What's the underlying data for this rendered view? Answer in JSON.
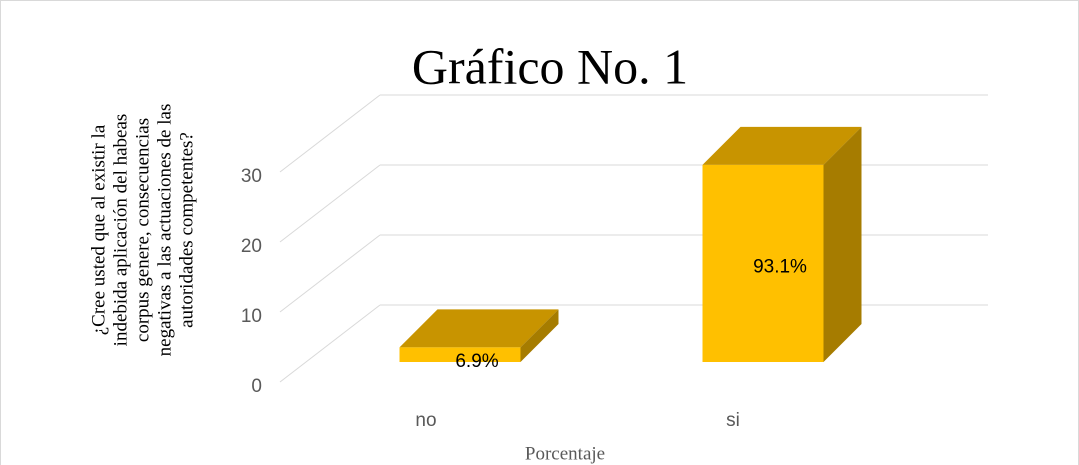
{
  "chart_data": {
    "type": "bar3d",
    "title": "Gráfico No. 1",
    "ylabel": "¿Cree usted que al existir la indebida aplicación del habeas corpus genere, consecuencias negativas a las actuaciones de las autoridades competentes?",
    "ylabel_lines": [
      "¿Cree usted que al existir la",
      "indebida aplicación del habeas",
      "corpus genere, consecuencias",
      "negativas a las actuaciones de las",
      "autoridades competentes?"
    ],
    "xlabel": "Porcentaje",
    "categories": [
      "no",
      "si"
    ],
    "values": [
      2,
      27
    ],
    "annotations": [
      "6.9%",
      "93.1%"
    ],
    "color": "#ffc000",
    "ylim": [
      0,
      30
    ],
    "yticks": [
      0,
      10,
      20,
      30
    ],
    "grid": true
  }
}
